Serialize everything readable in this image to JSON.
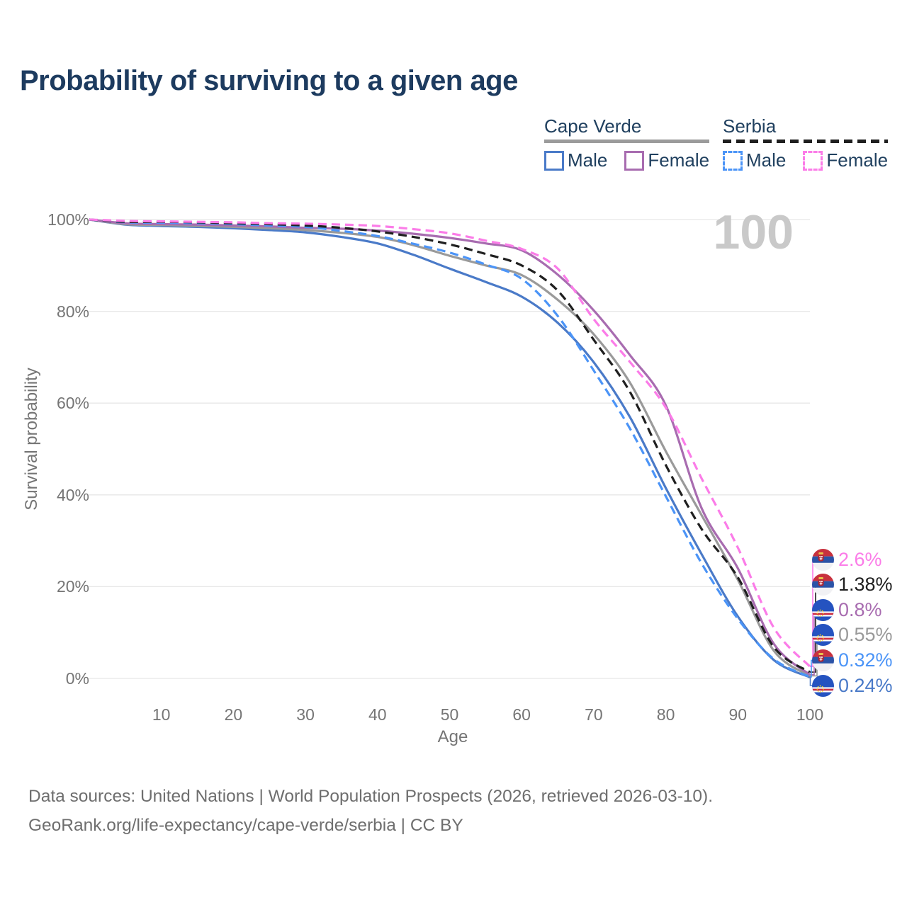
{
  "title": "Probability of surviving to a given age",
  "watermark": "100",
  "legend": {
    "groups": [
      {
        "name": "Cape Verde",
        "line_style": "solid",
        "underline_color": "#9b9b9b",
        "items": [
          {
            "label": "Male",
            "color": "#4a7ac8",
            "dashed": false
          },
          {
            "label": "Female",
            "color": "#a86cb0",
            "dashed": false
          }
        ]
      },
      {
        "name": "Serbia",
        "line_style": "dashed",
        "underline_color": "#1f1f1f",
        "items": [
          {
            "label": "Male",
            "color": "#4b94f7",
            "dashed": true
          },
          {
            "label": "Female",
            "color": "#fb7ce8",
            "dashed": true
          }
        ]
      }
    ]
  },
  "chart_data": {
    "type": "line",
    "title": "Probability of surviving to a given age",
    "xlabel": "Age",
    "ylabel": "Survival probability",
    "xlim": [
      0,
      100
    ],
    "ylim": [
      0,
      100
    ],
    "grid": "horizontal",
    "x_ticks": [
      10,
      20,
      30,
      40,
      50,
      60,
      70,
      80,
      90,
      100
    ],
    "y_ticks": [
      {
        "label": "100%",
        "value": 100
      },
      {
        "label": "80%",
        "value": 80
      },
      {
        "label": "60%",
        "value": 60
      },
      {
        "label": "40%",
        "value": 40
      },
      {
        "label": "20%",
        "value": 20
      },
      {
        "label": "0%",
        "value": 0
      }
    ],
    "series": [
      {
        "name": "Cape Verde Male",
        "country": "Cape Verde",
        "sex": "Male",
        "color": "#4a7ac8",
        "dashed": false,
        "end_value": 0.24,
        "points": [
          [
            0,
            100
          ],
          [
            5,
            98.9
          ],
          [
            10,
            98.6
          ],
          [
            15,
            98.4
          ],
          [
            20,
            98.1
          ],
          [
            25,
            97.7
          ],
          [
            30,
            97.2
          ],
          [
            35,
            96.2
          ],
          [
            40,
            94.8
          ],
          [
            45,
            92.3
          ],
          [
            50,
            89.3
          ],
          [
            55,
            86.4
          ],
          [
            60,
            83.2
          ],
          [
            65,
            77.5
          ],
          [
            70,
            68.9
          ],
          [
            75,
            57.0
          ],
          [
            80,
            41.5
          ],
          [
            85,
            27.0
          ],
          [
            90,
            13.5
          ],
          [
            95,
            4.0
          ],
          [
            100,
            0.24
          ]
        ]
      },
      {
        "name": "Cape Verde Total",
        "country": "Cape Verde",
        "sex": "All",
        "color": "#9a9a9a",
        "dashed": false,
        "end_value": 0.55,
        "points": [
          [
            0,
            100
          ],
          [
            5,
            99.0
          ],
          [
            10,
            98.8
          ],
          [
            15,
            98.6
          ],
          [
            20,
            98.4
          ],
          [
            25,
            98.1
          ],
          [
            30,
            97.7
          ],
          [
            35,
            97.1
          ],
          [
            40,
            96.2
          ],
          [
            45,
            94.4
          ],
          [
            50,
            92.1
          ],
          [
            55,
            90.0
          ],
          [
            60,
            87.9
          ],
          [
            65,
            82.5
          ],
          [
            70,
            75.0
          ],
          [
            75,
            64.5
          ],
          [
            80,
            49.5
          ],
          [
            85,
            35.5
          ],
          [
            90,
            21.5
          ],
          [
            95,
            6.0
          ],
          [
            100,
            0.55
          ]
        ]
      },
      {
        "name": "Cape Verde Female",
        "country": "Cape Verde",
        "sex": "Female",
        "color": "#a86cb0",
        "dashed": false,
        "end_value": 0.8,
        "points": [
          [
            0,
            100
          ],
          [
            5,
            99.2
          ],
          [
            10,
            99.0
          ],
          [
            15,
            98.9
          ],
          [
            20,
            98.7
          ],
          [
            25,
            98.5
          ],
          [
            30,
            98.2
          ],
          [
            35,
            98.0
          ],
          [
            40,
            97.6
          ],
          [
            45,
            96.9
          ],
          [
            50,
            96.0
          ],
          [
            55,
            94.8
          ],
          [
            60,
            93.3
          ],
          [
            65,
            88.0
          ],
          [
            70,
            80.2
          ],
          [
            75,
            70.5
          ],
          [
            80,
            59.5
          ],
          [
            85,
            37.0
          ],
          [
            90,
            24.0
          ],
          [
            95,
            7.5
          ],
          [
            100,
            0.8
          ]
        ]
      },
      {
        "name": "Serbia Male",
        "country": "Serbia",
        "sex": "Male",
        "color": "#4b94f7",
        "dashed": true,
        "end_value": 0.32,
        "points": [
          [
            0,
            100
          ],
          [
            5,
            99.4
          ],
          [
            10,
            99.3
          ],
          [
            15,
            99.2
          ],
          [
            20,
            99.0
          ],
          [
            25,
            98.7
          ],
          [
            30,
            98.4
          ],
          [
            35,
            97.5
          ],
          [
            40,
            96.4
          ],
          [
            45,
            94.7
          ],
          [
            50,
            92.8
          ],
          [
            55,
            90.2
          ],
          [
            60,
            87.1
          ],
          [
            65,
            79.0
          ],
          [
            70,
            67.1
          ],
          [
            75,
            54.5
          ],
          [
            80,
            39.7
          ],
          [
            85,
            25.0
          ],
          [
            90,
            13.0
          ],
          [
            95,
            4.2
          ],
          [
            100,
            0.32
          ]
        ]
      },
      {
        "name": "Serbia Total",
        "country": "Serbia",
        "sex": "All",
        "color": "#1f1f1f",
        "dashed": true,
        "end_value": 1.38,
        "points": [
          [
            0,
            100
          ],
          [
            5,
            99.5
          ],
          [
            10,
            99.5
          ],
          [
            15,
            99.4
          ],
          [
            20,
            99.2
          ],
          [
            25,
            99.0
          ],
          [
            30,
            98.7
          ],
          [
            35,
            98.2
          ],
          [
            40,
            97.4
          ],
          [
            45,
            96.2
          ],
          [
            50,
            94.6
          ],
          [
            55,
            92.5
          ],
          [
            60,
            90.0
          ],
          [
            65,
            84.5
          ],
          [
            70,
            73.8
          ],
          [
            75,
            62.5
          ],
          [
            80,
            46.5
          ],
          [
            85,
            32.5
          ],
          [
            90,
            22.0
          ],
          [
            95,
            6.8
          ],
          [
            100,
            1.38
          ]
        ]
      },
      {
        "name": "Serbia Female",
        "country": "Serbia",
        "sex": "Female",
        "color": "#fb7ce8",
        "dashed": true,
        "end_value": 2.6,
        "points": [
          [
            0,
            100
          ],
          [
            5,
            99.7
          ],
          [
            10,
            99.6
          ],
          [
            15,
            99.5
          ],
          [
            20,
            99.4
          ],
          [
            25,
            99.2
          ],
          [
            30,
            99.1
          ],
          [
            35,
            98.9
          ],
          [
            40,
            98.6
          ],
          [
            45,
            97.9
          ],
          [
            50,
            97.0
          ],
          [
            55,
            95.4
          ],
          [
            60,
            93.6
          ],
          [
            65,
            89.3
          ],
          [
            70,
            78.3
          ],
          [
            75,
            69.0
          ],
          [
            80,
            59.0
          ],
          [
            85,
            43.5
          ],
          [
            90,
            28.5
          ],
          [
            95,
            11.0
          ],
          [
            100,
            2.6
          ]
        ]
      }
    ]
  },
  "end_labels": [
    {
      "text": "2.6%",
      "color": "#fb7ce8",
      "flag": "serbia",
      "series": "Serbia Female",
      "value": 2.6
    },
    {
      "text": "1.38%",
      "color": "#1f1f1f",
      "flag": "serbia",
      "series": "Serbia Total",
      "value": 1.38
    },
    {
      "text": "0.8%",
      "color": "#a86cb0",
      "flag": "cape-verde",
      "series": "Cape Verde Female",
      "value": 0.8
    },
    {
      "text": "0.55%",
      "color": "#9a9a9a",
      "flag": "cape-verde",
      "series": "Cape Verde Total",
      "value": 0.55
    },
    {
      "text": "0.32%",
      "color": "#4b94f7",
      "flag": "serbia",
      "series": "Serbia Male",
      "value": 0.32
    },
    {
      "text": "0.24%",
      "color": "#4a7ac8",
      "flag": "cape-verde",
      "series": "Cape Verde Male",
      "value": 0.24
    }
  ],
  "footer": {
    "line1": "Data sources: United Nations | World Population Prospects (2026, retrieved 2026-03-10).",
    "line2": "GeoRank.org/life-expectancy/cape-verde/serbia | CC BY"
  }
}
